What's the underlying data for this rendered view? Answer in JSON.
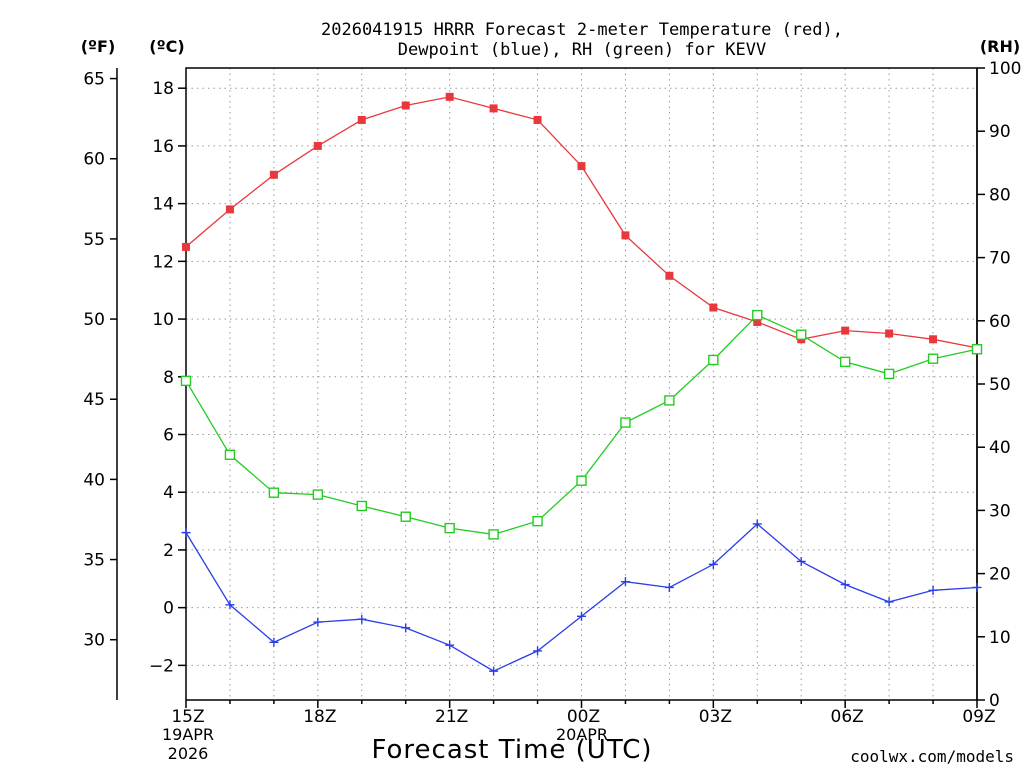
{
  "header": {
    "title_line1": "2026041915 HRRR Forecast 2-meter Temperature (red),",
    "title_line2": "Dewpoint (blue), RH (green) for KEVV",
    "unit_f": "(ºF)",
    "unit_c": "(ºC)",
    "unit_rh": "(RH)"
  },
  "footer": {
    "xlabel": "Forecast Time (UTC)",
    "watermark": "coolwx.com/models",
    "start_date": "19APR",
    "start_year": "2026",
    "mid_date": "20APR"
  },
  "colors": {
    "temperature": "#e8383d",
    "dewpoint": "#2a3ee8",
    "rh": "#22cc22",
    "watermark": "#e03030",
    "grid": "#999999"
  },
  "chart_data": {
    "type": "line",
    "title": "2026041915 HRRR Forecast 2-meter Temperature (red), Dewpoint (blue), RH (green) for KEVV",
    "xlabel": "Forecast Time (UTC)",
    "x_hours": [
      0,
      1,
      2,
      3,
      4,
      5,
      6,
      7,
      8,
      9,
      10,
      11,
      12,
      13,
      14,
      15,
      16,
      17,
      18
    ],
    "x_ticks": [
      {
        "hour": 0,
        "label": "15Z"
      },
      {
        "hour": 3,
        "label": "18Z"
      },
      {
        "hour": 6,
        "label": "21Z"
      },
      {
        "hour": 9,
        "label": "00Z"
      },
      {
        "hour": 12,
        "label": "03Z"
      },
      {
        "hour": 15,
        "label": "06Z"
      },
      {
        "hour": 18,
        "label": "09Z"
      }
    ],
    "y_left_c": {
      "label": "(ºC)",
      "min": -3.2,
      "max": 18.7,
      "ticks": [
        -2,
        0,
        2,
        4,
        6,
        8,
        10,
        12,
        14,
        16,
        18
      ]
    },
    "y_left_f": {
      "label": "(ºF)",
      "ticks": [
        30,
        35,
        40,
        45,
        50,
        55,
        60,
        65
      ]
    },
    "y_right_rh": {
      "label": "(RH)",
      "min": 0,
      "max": 100,
      "ticks": [
        0,
        10,
        20,
        30,
        40,
        50,
        60,
        70,
        80,
        90,
        100
      ]
    },
    "series": [
      {
        "name": "Temperature",
        "axis": "c",
        "marker": "filled-square",
        "values": [
          12.5,
          13.8,
          15.0,
          16.0,
          16.9,
          17.4,
          17.7,
          17.3,
          16.9,
          15.3,
          12.9,
          11.5,
          10.4,
          9.9,
          9.3,
          9.6,
          9.5,
          9.3,
          9.0
        ]
      },
      {
        "name": "Dewpoint",
        "axis": "c",
        "marker": "plus",
        "values": [
          2.6,
          0.1,
          -1.2,
          -0.5,
          -0.4,
          -0.7,
          -1.3,
          -2.2,
          -1.5,
          -0.3,
          0.9,
          0.7,
          1.5,
          2.9,
          1.6,
          0.8,
          0.2,
          0.6,
          0.7
        ]
      },
      {
        "name": "RH",
        "axis": "rh",
        "marker": "open-square",
        "values": [
          50.5,
          38.8,
          32.8,
          32.5,
          30.7,
          29.0,
          27.2,
          26.2,
          28.3,
          34.7,
          43.9,
          47.4,
          53.8,
          60.9,
          57.8,
          53.5,
          51.6,
          54.0,
          55.5
        ]
      }
    ]
  }
}
